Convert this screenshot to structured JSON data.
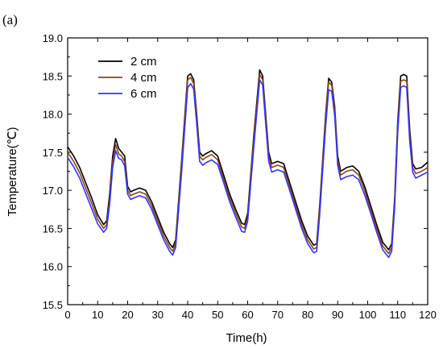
{
  "panel_label": "(a)",
  "chart_data": {
    "type": "line",
    "title": "",
    "xlabel": "Time(h)",
    "ylabel": "Temperature(℃)",
    "xlim": [
      0,
      120
    ],
    "ylim": [
      15.5,
      19.0
    ],
    "xticks": [
      0,
      10,
      20,
      30,
      40,
      50,
      60,
      70,
      80,
      90,
      100,
      110,
      120
    ],
    "yticks": [
      "15.5",
      "16.0",
      "16.5",
      "17.0",
      "17.5",
      "18.0",
      "18.5",
      "19.0"
    ],
    "grid": false,
    "legend_position": "top-left",
    "series": [
      {
        "name": "2 cm",
        "color": "#000000",
        "points": [
          [
            0,
            17.57
          ],
          [
            2,
            17.45
          ],
          [
            4,
            17.3
          ],
          [
            6,
            17.1
          ],
          [
            8,
            16.9
          ],
          [
            10,
            16.68
          ],
          [
            12,
            16.55
          ],
          [
            13,
            16.6
          ],
          [
            14,
            16.95
          ],
          [
            15,
            17.45
          ],
          [
            16,
            17.68
          ],
          [
            17,
            17.55
          ],
          [
            18,
            17.5
          ],
          [
            19,
            17.45
          ],
          [
            20,
            17.05
          ],
          [
            21,
            16.98
          ],
          [
            22,
            17.0
          ],
          [
            24,
            17.03
          ],
          [
            26,
            17.0
          ],
          [
            28,
            16.85
          ],
          [
            30,
            16.65
          ],
          [
            32,
            16.45
          ],
          [
            34,
            16.3
          ],
          [
            35,
            16.25
          ],
          [
            36,
            16.35
          ],
          [
            38,
            17.4
          ],
          [
            40,
            18.5
          ],
          [
            41,
            18.53
          ],
          [
            42,
            18.45
          ],
          [
            43,
            18.0
          ],
          [
            44,
            17.5
          ],
          [
            45,
            17.45
          ],
          [
            46,
            17.48
          ],
          [
            48,
            17.52
          ],
          [
            50,
            17.45
          ],
          [
            52,
            17.2
          ],
          [
            54,
            16.95
          ],
          [
            56,
            16.75
          ],
          [
            58,
            16.57
          ],
          [
            59,
            16.55
          ],
          [
            60,
            16.7
          ],
          [
            62,
            17.7
          ],
          [
            64,
            18.58
          ],
          [
            65,
            18.5
          ],
          [
            66,
            18.0
          ],
          [
            67,
            17.5
          ],
          [
            68,
            17.35
          ],
          [
            70,
            17.38
          ],
          [
            72,
            17.35
          ],
          [
            74,
            17.1
          ],
          [
            76,
            16.85
          ],
          [
            78,
            16.6
          ],
          [
            80,
            16.4
          ],
          [
            82,
            16.28
          ],
          [
            83,
            16.3
          ],
          [
            84,
            16.8
          ],
          [
            86,
            18.0
          ],
          [
            87,
            18.47
          ],
          [
            88,
            18.42
          ],
          [
            89,
            18.1
          ],
          [
            90,
            17.45
          ],
          [
            91,
            17.25
          ],
          [
            93,
            17.3
          ],
          [
            95,
            17.32
          ],
          [
            97,
            17.25
          ],
          [
            99,
            17.05
          ],
          [
            101,
            16.8
          ],
          [
            103,
            16.55
          ],
          [
            105,
            16.32
          ],
          [
            107,
            16.22
          ],
          [
            108,
            16.3
          ],
          [
            109,
            16.9
          ],
          [
            110,
            17.9
          ],
          [
            111,
            18.5
          ],
          [
            112,
            18.52
          ],
          [
            113,
            18.5
          ],
          [
            114,
            17.8
          ],
          [
            115,
            17.35
          ],
          [
            116,
            17.28
          ],
          [
            118,
            17.3
          ],
          [
            120,
            17.37
          ]
        ]
      },
      {
        "name": "4 cm",
        "color": "#8b4513",
        "points": [
          [
            0,
            17.5
          ],
          [
            2,
            17.38
          ],
          [
            4,
            17.23
          ],
          [
            6,
            17.03
          ],
          [
            8,
            16.83
          ],
          [
            10,
            16.62
          ],
          [
            12,
            16.5
          ],
          [
            13,
            16.55
          ],
          [
            14,
            16.88
          ],
          [
            15,
            17.38
          ],
          [
            16,
            17.6
          ],
          [
            17,
            17.48
          ],
          [
            18,
            17.45
          ],
          [
            19,
            17.38
          ],
          [
            20,
            17.0
          ],
          [
            21,
            16.93
          ],
          [
            22,
            16.95
          ],
          [
            24,
            16.98
          ],
          [
            26,
            16.95
          ],
          [
            28,
            16.8
          ],
          [
            30,
            16.6
          ],
          [
            32,
            16.4
          ],
          [
            34,
            16.25
          ],
          [
            35,
            16.2
          ],
          [
            36,
            16.3
          ],
          [
            38,
            17.35
          ],
          [
            40,
            18.45
          ],
          [
            41,
            18.48
          ],
          [
            42,
            18.4
          ],
          [
            43,
            17.95
          ],
          [
            44,
            17.45
          ],
          [
            45,
            17.4
          ],
          [
            46,
            17.43
          ],
          [
            48,
            17.47
          ],
          [
            50,
            17.4
          ],
          [
            52,
            17.15
          ],
          [
            54,
            16.9
          ],
          [
            56,
            16.7
          ],
          [
            58,
            16.52
          ],
          [
            59,
            16.5
          ],
          [
            60,
            16.65
          ],
          [
            62,
            17.65
          ],
          [
            64,
            18.52
          ],
          [
            65,
            18.45
          ],
          [
            66,
            17.95
          ],
          [
            67,
            17.45
          ],
          [
            68,
            17.3
          ],
          [
            70,
            17.33
          ],
          [
            72,
            17.3
          ],
          [
            74,
            17.05
          ],
          [
            76,
            16.8
          ],
          [
            78,
            16.55
          ],
          [
            80,
            16.35
          ],
          [
            82,
            16.23
          ],
          [
            83,
            16.25
          ],
          [
            84,
            16.75
          ],
          [
            86,
            17.95
          ],
          [
            87,
            18.42
          ],
          [
            88,
            18.38
          ],
          [
            89,
            18.05
          ],
          [
            90,
            17.4
          ],
          [
            91,
            17.2
          ],
          [
            93,
            17.25
          ],
          [
            95,
            17.27
          ],
          [
            97,
            17.2
          ],
          [
            99,
            17.0
          ],
          [
            101,
            16.75
          ],
          [
            103,
            16.5
          ],
          [
            105,
            16.27
          ],
          [
            107,
            16.17
          ],
          [
            108,
            16.25
          ],
          [
            109,
            16.85
          ],
          [
            110,
            17.85
          ],
          [
            111,
            18.43
          ],
          [
            112,
            18.45
          ],
          [
            113,
            18.43
          ],
          [
            114,
            17.72
          ],
          [
            115,
            17.3
          ],
          [
            116,
            17.22
          ],
          [
            118,
            17.25
          ],
          [
            120,
            17.3
          ]
        ]
      },
      {
        "name": "6 cm",
        "color": "#3333ff",
        "points": [
          [
            0,
            17.43
          ],
          [
            2,
            17.31
          ],
          [
            4,
            17.16
          ],
          [
            6,
            16.96
          ],
          [
            8,
            16.76
          ],
          [
            10,
            16.56
          ],
          [
            12,
            16.45
          ],
          [
            13,
            16.5
          ],
          [
            14,
            16.82
          ],
          [
            15,
            17.3
          ],
          [
            16,
            17.52
          ],
          [
            17,
            17.42
          ],
          [
            18,
            17.4
          ],
          [
            19,
            17.32
          ],
          [
            20,
            16.95
          ],
          [
            21,
            16.88
          ],
          [
            22,
            16.9
          ],
          [
            24,
            16.93
          ],
          [
            26,
            16.9
          ],
          [
            28,
            16.75
          ],
          [
            30,
            16.55
          ],
          [
            32,
            16.35
          ],
          [
            34,
            16.2
          ],
          [
            35,
            16.15
          ],
          [
            36,
            16.25
          ],
          [
            38,
            17.25
          ],
          [
            40,
            18.35
          ],
          [
            41,
            18.4
          ],
          [
            42,
            18.33
          ],
          [
            43,
            17.88
          ],
          [
            44,
            17.38
          ],
          [
            45,
            17.33
          ],
          [
            46,
            17.36
          ],
          [
            48,
            17.4
          ],
          [
            50,
            17.34
          ],
          [
            52,
            17.1
          ],
          [
            54,
            16.85
          ],
          [
            56,
            16.65
          ],
          [
            58,
            16.46
          ],
          [
            59,
            16.45
          ],
          [
            60,
            16.6
          ],
          [
            62,
            17.55
          ],
          [
            64,
            18.45
          ],
          [
            65,
            18.38
          ],
          [
            66,
            17.88
          ],
          [
            67,
            17.38
          ],
          [
            68,
            17.24
          ],
          [
            70,
            17.27
          ],
          [
            72,
            17.24
          ],
          [
            74,
            17.0
          ],
          [
            76,
            16.75
          ],
          [
            78,
            16.5
          ],
          [
            80,
            16.3
          ],
          [
            82,
            16.18
          ],
          [
            83,
            16.2
          ],
          [
            84,
            16.68
          ],
          [
            86,
            17.85
          ],
          [
            87,
            18.32
          ],
          [
            88,
            18.3
          ],
          [
            89,
            17.98
          ],
          [
            90,
            17.33
          ],
          [
            91,
            17.14
          ],
          [
            93,
            17.18
          ],
          [
            95,
            17.2
          ],
          [
            97,
            17.14
          ],
          [
            99,
            16.94
          ],
          [
            101,
            16.7
          ],
          [
            103,
            16.45
          ],
          [
            105,
            16.22
          ],
          [
            107,
            16.12
          ],
          [
            108,
            16.2
          ],
          [
            109,
            16.78
          ],
          [
            110,
            17.75
          ],
          [
            111,
            18.35
          ],
          [
            112,
            18.37
          ],
          [
            113,
            18.35
          ],
          [
            114,
            17.65
          ],
          [
            115,
            17.24
          ],
          [
            116,
            17.16
          ],
          [
            118,
            17.2
          ],
          [
            120,
            17.24
          ]
        ]
      }
    ]
  }
}
